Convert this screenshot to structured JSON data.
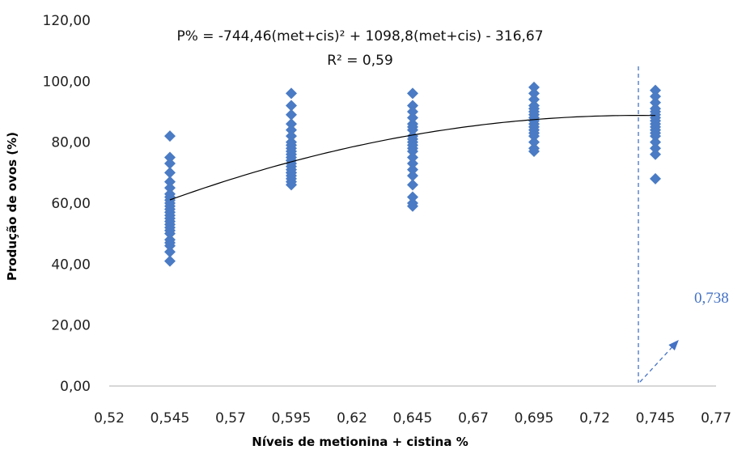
{
  "colors": {
    "marker": "#4a7bc4",
    "trend_line": "#000000",
    "axis": "#bfbfbf",
    "callout": "#4472c4"
  },
  "chart_data": {
    "type": "scatter",
    "title": "",
    "xlabel": "Níveis de metionina + cistina %",
    "ylabel": "Produção de ovos (%)",
    "xlim": [
      0.52,
      0.77
    ],
    "ylim": [
      0,
      120
    ],
    "x_ticks": [
      "0,52",
      "0,545",
      "0,57",
      "0,595",
      "0,62",
      "0,645",
      "0,67",
      "0,695",
      "0,72",
      "0,745",
      "0,77"
    ],
    "y_ticks": [
      "0,00",
      "20,00",
      "40,00",
      "60,00",
      "80,00",
      "100,00",
      "120,00"
    ],
    "grid": false,
    "legend": "none",
    "series": [
      {
        "marker": "diamond",
        "x": [
          0.545,
          0.545,
          0.545,
          0.545,
          0.545,
          0.545,
          0.545,
          0.545,
          0.545,
          0.545,
          0.545,
          0.545,
          0.545,
          0.545,
          0.545,
          0.545,
          0.545,
          0.545,
          0.545,
          0.545,
          0.545,
          0.545,
          0.545,
          0.545,
          0.545,
          0.595,
          0.595,
          0.595,
          0.595,
          0.595,
          0.595,
          0.595,
          0.595,
          0.595,
          0.595,
          0.595,
          0.595,
          0.595,
          0.595,
          0.595,
          0.595,
          0.595,
          0.595,
          0.595,
          0.595,
          0.595,
          0.595,
          0.595,
          0.645,
          0.645,
          0.645,
          0.645,
          0.645,
          0.645,
          0.645,
          0.645,
          0.645,
          0.645,
          0.645,
          0.645,
          0.645,
          0.645,
          0.645,
          0.645,
          0.645,
          0.645,
          0.645,
          0.645,
          0.645,
          0.695,
          0.695,
          0.695,
          0.695,
          0.695,
          0.695,
          0.695,
          0.695,
          0.695,
          0.695,
          0.695,
          0.695,
          0.695,
          0.695,
          0.695,
          0.695,
          0.695,
          0.745,
          0.745,
          0.745,
          0.745,
          0.745,
          0.745,
          0.745,
          0.745,
          0.745,
          0.745,
          0.745,
          0.745,
          0.745,
          0.745,
          0.745,
          0.745,
          0.745
        ],
        "y": [
          82,
          75,
          73,
          70,
          67,
          65,
          63,
          62,
          61,
          60,
          59,
          58,
          57,
          56,
          55,
          54,
          53,
          52,
          51,
          50,
          48,
          47,
          46,
          44,
          41,
          96,
          92,
          89,
          86,
          84,
          82,
          80,
          79,
          78,
          77,
          76,
          75,
          74,
          73,
          72,
          71,
          70,
          69,
          68,
          67,
          66,
          70,
          74,
          96,
          92,
          90,
          88,
          86,
          84,
          82,
          81,
          80,
          79,
          78,
          77,
          75,
          73,
          71,
          69,
          66,
          62,
          60,
          59,
          85,
          98,
          96,
          94,
          92,
          91,
          90,
          89,
          88,
          87,
          86,
          85,
          84,
          83,
          82,
          80,
          78,
          77,
          97,
          95,
          93,
          91,
          90,
          89,
          88,
          87,
          86,
          85,
          84,
          83,
          82,
          80,
          78,
          76,
          68
        ]
      }
    ],
    "trendline": {
      "type": "polynomial",
      "coefficients": {
        "a": -744.46,
        "b": 1098.8,
        "c": -316.67
      },
      "x_range": [
        0.545,
        0.745
      ],
      "equation": "P% = -744,46(met+cis)² + 1098,8(met+cis) - 316,67",
      "r_squared": "R² = 0,59"
    },
    "annotations": [
      {
        "type": "vertical-dashed-line",
        "x": 0.738
      },
      {
        "type": "callout",
        "text": "0,738"
      }
    ]
  }
}
